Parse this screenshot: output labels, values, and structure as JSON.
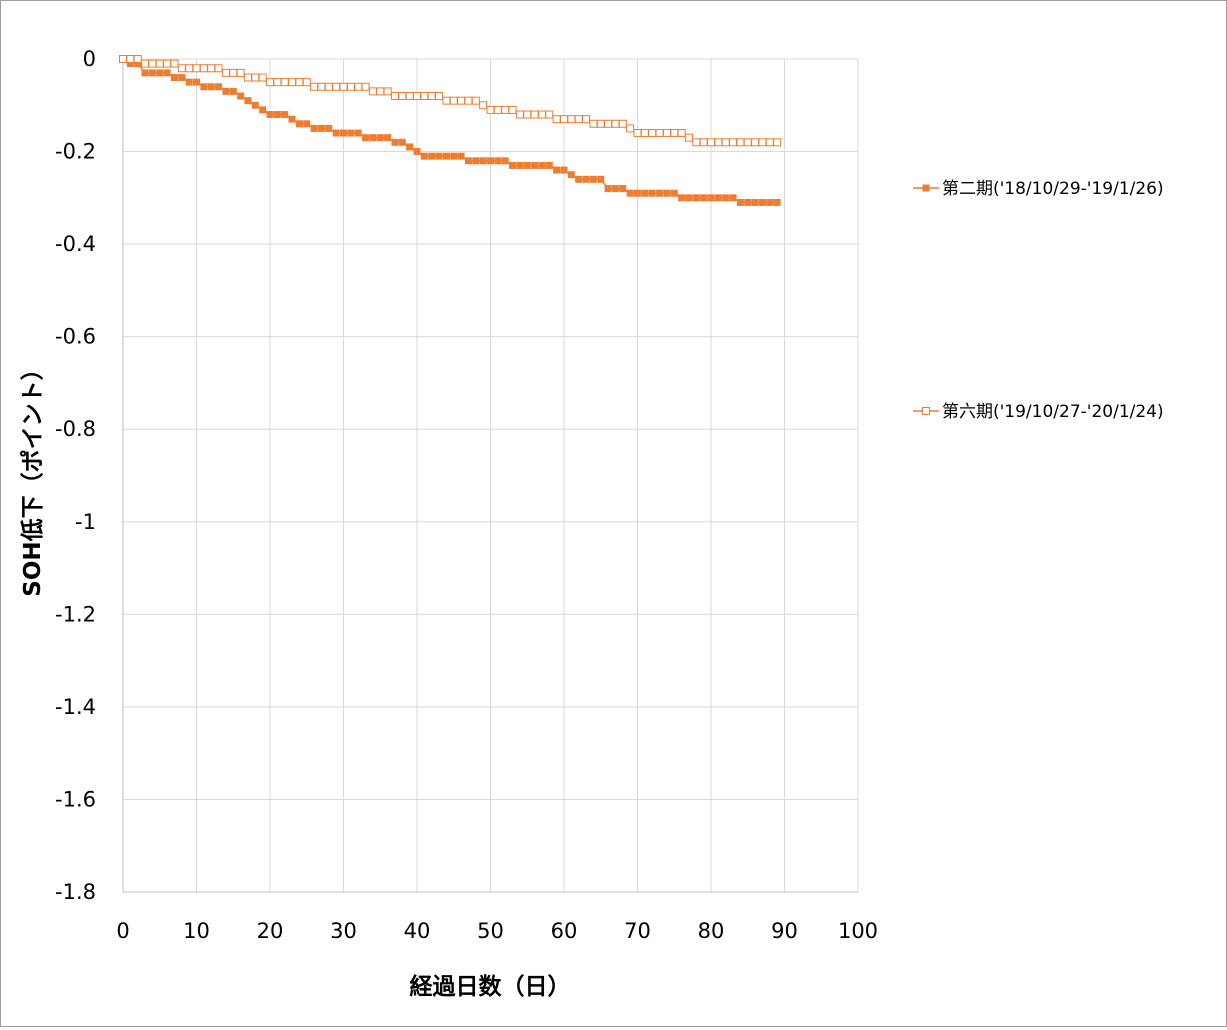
{
  "chart_data": {
    "type": "line",
    "xlabel": "経過日数（日）",
    "ylabel": "SOH低下（ポイント）",
    "xlim": [
      0,
      100
    ],
    "ylim": [
      -1.8,
      0
    ],
    "x_ticks": [
      "0",
      "10",
      "20",
      "30",
      "40",
      "50",
      "60",
      "70",
      "80",
      "90",
      "100"
    ],
    "y_ticks": [
      "0",
      "-0.2",
      "-0.4",
      "-0.6",
      "-0.8",
      "-1",
      "-1.2",
      "-1.4",
      "-1.6",
      "-1.8"
    ],
    "grid": true,
    "legend_position": "right",
    "series": [
      {
        "name": "第二期('18/10/29-'19/1/26)",
        "color": "#ED7D31",
        "marker": "filled-square",
        "points": [
          [
            0,
            0
          ],
          [
            1,
            -0.01
          ],
          [
            2,
            -0.01
          ],
          [
            3,
            -0.03
          ],
          [
            4,
            -0.03
          ],
          [
            5,
            -0.03
          ],
          [
            6,
            -0.03
          ],
          [
            7,
            -0.04
          ],
          [
            8,
            -0.04
          ],
          [
            9,
            -0.05
          ],
          [
            10,
            -0.05
          ],
          [
            11,
            -0.06
          ],
          [
            12,
            -0.06
          ],
          [
            13,
            -0.06
          ],
          [
            14,
            -0.07
          ],
          [
            15,
            -0.07
          ],
          [
            16,
            -0.08
          ],
          [
            17,
            -0.09
          ],
          [
            18,
            -0.1
          ],
          [
            19,
            -0.11
          ],
          [
            20,
            -0.12
          ],
          [
            21,
            -0.12
          ],
          [
            22,
            -0.12
          ],
          [
            23,
            -0.13
          ],
          [
            24,
            -0.14
          ],
          [
            25,
            -0.14
          ],
          [
            26,
            -0.15
          ],
          [
            27,
            -0.15
          ],
          [
            28,
            -0.15
          ],
          [
            29,
            -0.16
          ],
          [
            30,
            -0.16
          ],
          [
            31,
            -0.16
          ],
          [
            32,
            -0.16
          ],
          [
            33,
            -0.17
          ],
          [
            34,
            -0.17
          ],
          [
            35,
            -0.17
          ],
          [
            36,
            -0.17
          ],
          [
            37,
            -0.18
          ],
          [
            38,
            -0.18
          ],
          [
            39,
            -0.19
          ],
          [
            40,
            -0.2
          ],
          [
            41,
            -0.21
          ],
          [
            42,
            -0.21
          ],
          [
            43,
            -0.21
          ],
          [
            44,
            -0.21
          ],
          [
            45,
            -0.21
          ],
          [
            46,
            -0.21
          ],
          [
            47,
            -0.22
          ],
          [
            48,
            -0.22
          ],
          [
            49,
            -0.22
          ],
          [
            50,
            -0.22
          ],
          [
            51,
            -0.22
          ],
          [
            52,
            -0.22
          ],
          [
            53,
            -0.23
          ],
          [
            54,
            -0.23
          ],
          [
            55,
            -0.23
          ],
          [
            56,
            -0.23
          ],
          [
            57,
            -0.23
          ],
          [
            58,
            -0.23
          ],
          [
            59,
            -0.24
          ],
          [
            60,
            -0.24
          ],
          [
            61,
            -0.25
          ],
          [
            62,
            -0.26
          ],
          [
            63,
            -0.26
          ],
          [
            64,
            -0.26
          ],
          [
            65,
            -0.26
          ],
          [
            66,
            -0.28
          ],
          [
            67,
            -0.28
          ],
          [
            68,
            -0.28
          ],
          [
            69,
            -0.29
          ],
          [
            70,
            -0.29
          ],
          [
            71,
            -0.29
          ],
          [
            72,
            -0.29
          ],
          [
            73,
            -0.29
          ],
          [
            74,
            -0.29
          ],
          [
            75,
            -0.29
          ],
          [
            76,
            -0.3
          ],
          [
            77,
            -0.3
          ],
          [
            78,
            -0.3
          ],
          [
            79,
            -0.3
          ],
          [
            80,
            -0.3
          ],
          [
            81,
            -0.3
          ],
          [
            82,
            -0.3
          ],
          [
            83,
            -0.3
          ],
          [
            84,
            -0.31
          ],
          [
            85,
            -0.31
          ],
          [
            86,
            -0.31
          ],
          [
            87,
            -0.31
          ],
          [
            88,
            -0.31
          ],
          [
            89,
            -0.31
          ]
        ]
      },
      {
        "name": "第六期('19/10/27-'20/1/24)",
        "color": "#ED7D31",
        "marker": "hollow-square",
        "points": [
          [
            0,
            0
          ],
          [
            1,
            0
          ],
          [
            2,
            0
          ],
          [
            3,
            -0.01
          ],
          [
            4,
            -0.01
          ],
          [
            5,
            -0.01
          ],
          [
            6,
            -0.01
          ],
          [
            7,
            -0.01
          ],
          [
            8,
            -0.02
          ],
          [
            9,
            -0.02
          ],
          [
            10,
            -0.02
          ],
          [
            11,
            -0.02
          ],
          [
            12,
            -0.02
          ],
          [
            13,
            -0.02
          ],
          [
            14,
            -0.03
          ],
          [
            15,
            -0.03
          ],
          [
            16,
            -0.03
          ],
          [
            17,
            -0.04
          ],
          [
            18,
            -0.04
          ],
          [
            19,
            -0.04
          ],
          [
            20,
            -0.05
          ],
          [
            21,
            -0.05
          ],
          [
            22,
            -0.05
          ],
          [
            23,
            -0.05
          ],
          [
            24,
            -0.05
          ],
          [
            25,
            -0.05
          ],
          [
            26,
            -0.06
          ],
          [
            27,
            -0.06
          ],
          [
            28,
            -0.06
          ],
          [
            29,
            -0.06
          ],
          [
            30,
            -0.06
          ],
          [
            31,
            -0.06
          ],
          [
            32,
            -0.06
          ],
          [
            33,
            -0.06
          ],
          [
            34,
            -0.07
          ],
          [
            35,
            -0.07
          ],
          [
            36,
            -0.07
          ],
          [
            37,
            -0.08
          ],
          [
            38,
            -0.08
          ],
          [
            39,
            -0.08
          ],
          [
            40,
            -0.08
          ],
          [
            41,
            -0.08
          ],
          [
            42,
            -0.08
          ],
          [
            43,
            -0.08
          ],
          [
            44,
            -0.09
          ],
          [
            45,
            -0.09
          ],
          [
            46,
            -0.09
          ],
          [
            47,
            -0.09
          ],
          [
            48,
            -0.09
          ],
          [
            49,
            -0.1
          ],
          [
            50,
            -0.11
          ],
          [
            51,
            -0.11
          ],
          [
            52,
            -0.11
          ],
          [
            53,
            -0.11
          ],
          [
            54,
            -0.12
          ],
          [
            55,
            -0.12
          ],
          [
            56,
            -0.12
          ],
          [
            57,
            -0.12
          ],
          [
            58,
            -0.12
          ],
          [
            59,
            -0.13
          ],
          [
            60,
            -0.13
          ],
          [
            61,
            -0.13
          ],
          [
            62,
            -0.13
          ],
          [
            63,
            -0.13
          ],
          [
            64,
            -0.14
          ],
          [
            65,
            -0.14
          ],
          [
            66,
            -0.14
          ],
          [
            67,
            -0.14
          ],
          [
            68,
            -0.14
          ],
          [
            69,
            -0.15
          ],
          [
            70,
            -0.16
          ],
          [
            71,
            -0.16
          ],
          [
            72,
            -0.16
          ],
          [
            73,
            -0.16
          ],
          [
            74,
            -0.16
          ],
          [
            75,
            -0.16
          ],
          [
            76,
            -0.16
          ],
          [
            77,
            -0.17
          ],
          [
            78,
            -0.18
          ],
          [
            79,
            -0.18
          ],
          [
            80,
            -0.18
          ],
          [
            81,
            -0.18
          ],
          [
            82,
            -0.18
          ],
          [
            83,
            -0.18
          ],
          [
            84,
            -0.18
          ],
          [
            85,
            -0.18
          ],
          [
            86,
            -0.18
          ],
          [
            87,
            -0.18
          ],
          [
            88,
            -0.18
          ],
          [
            89,
            -0.18
          ]
        ]
      }
    ]
  }
}
